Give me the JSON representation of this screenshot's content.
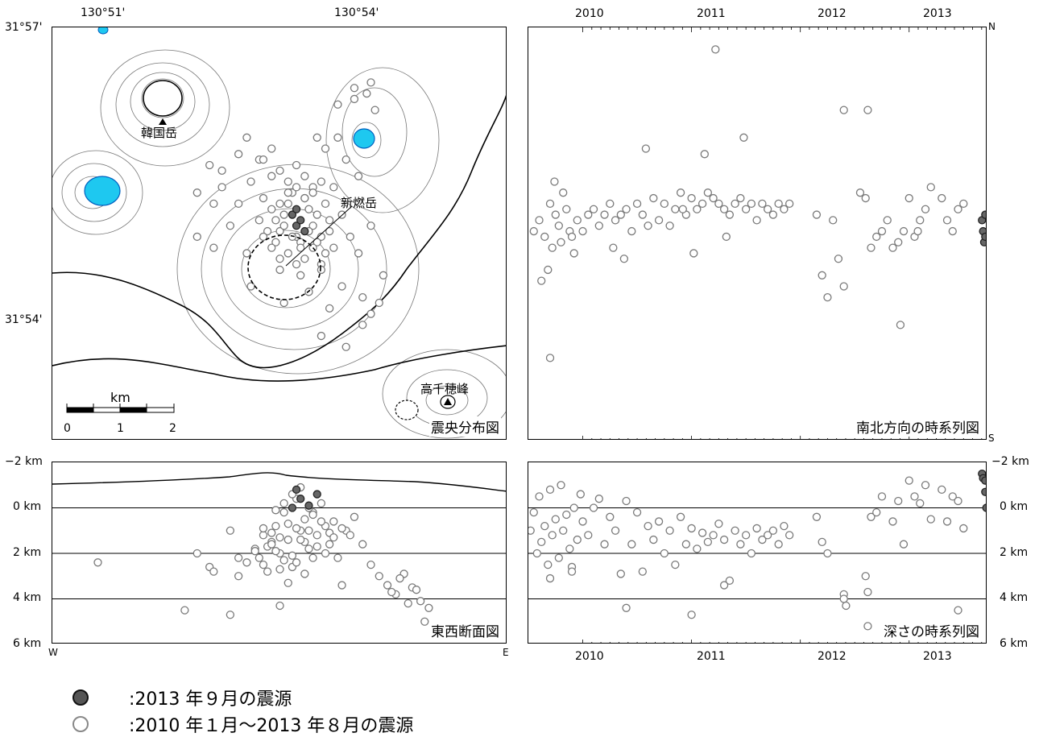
{
  "map": {
    "lon_labels": [
      "130°51'",
      "130°54'"
    ],
    "lat_labels": [
      "31°57'",
      "31°54'"
    ],
    "peaks": [
      "韓国岳",
      "新燃岳",
      "高千穂峰"
    ],
    "scale": {
      "unit": "km",
      "ticks": [
        "0",
        "1",
        "2"
      ]
    },
    "title": "震央分布図"
  },
  "ns_panel": {
    "years": [
      "2010",
      "2011",
      "2012",
      "2013"
    ],
    "north": "N",
    "south": "S",
    "title": "南北方向の時系列図"
  },
  "ew_panel": {
    "depth_labels": [
      "−2 km",
      "0 km",
      "2 km",
      "4 km",
      "6 km"
    ],
    "west": "W",
    "east": "E",
    "title": "東西断面図"
  },
  "dt_panel": {
    "depth_labels": [
      "−2 km",
      "0 km",
      "2 km",
      "4 km",
      "6 km"
    ],
    "years": [
      "2010",
      "2011",
      "2012",
      "2013"
    ],
    "title": "深さの時系列図"
  },
  "legend": [
    {
      "symbol": "filled-dark-circle",
      "text": ":2013 年９月の震源"
    },
    {
      "symbol": "open-circle",
      "text": ":2010 年１月～2013 年８月の震源"
    }
  ],
  "colors": {
    "recent": "#666666",
    "older": "#ffffff",
    "outline": "#7a7a7a",
    "lake": "#1ec8f0"
  },
  "chart_data": [
    {
      "type": "scatter",
      "name": "epicenter-map",
      "title": "震央分布図",
      "xlabel": "",
      "ylabel": "",
      "xlim": [
        130.825,
        130.935
      ],
      "ylim": [
        31.875,
        31.95
      ],
      "x_ticks": [
        "130°51'",
        "130°54'"
      ],
      "y_ticks": [
        "31°57'",
        "31°54'"
      ],
      "series": [
        {
          "name": "2013 年９月の震源",
          "x": [
            130.883,
            130.884,
            130.885,
            130.886,
            130.884
          ],
          "y": [
            31.916,
            31.914,
            31.915,
            31.913,
            31.917
          ]
        },
        {
          "name": "2010 年１月～2013 年８月の震源",
          "x": [
            130.86,
            130.863,
            130.866,
            130.87,
            130.873,
            130.876,
            130.878,
            130.879,
            130.88,
            130.881,
            130.882,
            130.883,
            130.884,
            130.885,
            130.886,
            130.887,
            130.888,
            130.889,
            130.89,
            130.891,
            130.892,
            130.893,
            130.895,
            130.897,
            130.899,
            130.902,
            130.905,
            130.875,
            130.877,
            130.879,
            130.881,
            130.883,
            130.885,
            130.887,
            130.889,
            130.891,
            130.88,
            130.882,
            130.884,
            130.886,
            130.888,
            130.878,
            130.88,
            130.882,
            130.884,
            130.886,
            130.888,
            130.89,
            130.876,
            130.878,
            130.88,
            130.882,
            130.884,
            130.886,
            130.888,
            130.89,
            130.892,
            130.88,
            130.885,
            130.89,
            130.895,
            130.9,
            130.904,
            130.903,
            130.901,
            130.898,
            130.87,
            130.866,
            130.864,
            130.868,
            130.872,
            130.893,
            130.896,
            130.899,
            130.894,
            130.891,
            130.878,
            130.875,
            130.873,
            130.881,
            130.887,
            130.892,
            130.9,
            130.902,
            130.896,
            130.89,
            130.86,
            130.864,
            130.902,
            130.898,
            130.894,
            130.889,
            130.876,
            130.872
          ],
          "y": [
            31.92,
            31.925,
            31.921,
            31.918,
            31.922,
            31.919,
            31.917,
            31.915,
            31.913,
            31.916,
            31.918,
            31.92,
            31.912,
            31.911,
            31.919,
            31.917,
            31.914,
            31.916,
            31.912,
            31.918,
            31.913,
            31.91,
            31.916,
            31.912,
            31.909,
            31.914,
            31.905,
            31.915,
            31.913,
            31.911,
            31.914,
            31.912,
            31.91,
            31.913,
            31.911,
            31.909,
            31.918,
            31.92,
            31.921,
            31.919,
            31.921,
            31.923,
            31.924,
            31.922,
            31.925,
            31.923,
            31.92,
            31.922,
            31.912,
            31.91,
            31.908,
            31.909,
            31.907,
            31.908,
            31.91,
            31.907,
            31.915,
            31.906,
            31.905,
            31.906,
            31.903,
            31.901,
            31.9,
            31.935,
            31.938,
            31.937,
            31.927,
            31.924,
            31.918,
            31.914,
            31.909,
            31.921,
            31.926,
            31.923,
            31.93,
            31.928,
            31.928,
            31.926,
            31.903,
            31.9,
            31.902,
            31.899,
            31.896,
            31.898,
            31.892,
            31.894,
            31.912,
            31.91,
            31.94,
            31.939,
            31.936,
            31.93,
            31.926,
            31.93
          ]
        }
      ]
    },
    {
      "type": "scatter",
      "name": "north-south-time-series",
      "title": "南北方向の時系列図",
      "xlabel": "",
      "ylabel": "",
      "x_ticks": [
        "2010",
        "2011",
        "2012",
        "2013"
      ],
      "xlim": [
        2009.5,
        2013.72
      ],
      "ylim": [
        "S",
        "N"
      ],
      "series": [
        {
          "name": "2013 年９月の震源",
          "x": [
            2013.67,
            2013.68,
            2013.7,
            2013.69,
            2013.7
          ],
          "y": [
            31.915,
            31.913,
            31.916,
            31.911,
            31.912
          ]
        },
        {
          "name": "2010 年１月～2013 年８月の震源",
          "x": [
            2009.55,
            2009.6,
            2009.65,
            2009.7,
            2009.72,
            2009.75,
            2009.78,
            2009.8,
            2009.85,
            2009.88,
            2009.9,
            2009.95,
            2010.0,
            2010.05,
            2010.1,
            2010.15,
            2010.2,
            2010.25,
            2010.3,
            2010.35,
            2010.4,
            2010.45,
            2010.5,
            2010.55,
            2010.6,
            2010.65,
            2010.7,
            2010.75,
            2010.8,
            2010.85,
            2010.9,
            2010.95,
            2011.0,
            2011.05,
            2011.1,
            2011.15,
            2011.2,
            2011.25,
            2011.3,
            2011.35,
            2011.4,
            2011.45,
            2011.5,
            2011.55,
            2011.6,
            2011.65,
            2011.7,
            2011.75,
            2011.8,
            2011.85,
            2011.9,
            2012.15,
            2012.2,
            2012.25,
            2012.3,
            2012.35,
            2012.4,
            2012.55,
            2012.6,
            2012.65,
            2012.7,
            2012.75,
            2012.8,
            2012.85,
            2012.9,
            2012.95,
            2013.0,
            2013.05,
            2013.1,
            2013.15,
            2013.2,
            2013.3,
            2013.35,
            2013.4,
            2013.45,
            2013.5,
            2009.62,
            2009.68,
            2009.74,
            2009.82,
            2009.92,
            2010.28,
            2010.38,
            2010.58,
            2010.92,
            2011.02,
            2011.12,
            2011.22,
            2011.32,
            2011.48,
            2012.4,
            2012.62,
            2012.92,
            2013.08,
            2009.7
          ],
          "y": [
            31.913,
            31.915,
            31.912,
            31.918,
            31.91,
            31.916,
            31.914,
            31.911,
            31.917,
            31.913,
            31.912,
            31.915,
            31.913,
            31.916,
            31.917,
            31.914,
            31.916,
            31.918,
            31.915,
            31.916,
            31.917,
            31.913,
            31.918,
            31.916,
            31.914,
            31.919,
            31.915,
            31.918,
            31.914,
            31.917,
            31.92,
            31.916,
            31.919,
            31.917,
            31.918,
            31.92,
            31.919,
            31.918,
            31.917,
            31.916,
            31.918,
            31.919,
            31.917,
            31.918,
            31.915,
            31.918,
            31.917,
            31.916,
            31.918,
            31.917,
            31.918,
            31.916,
            31.905,
            31.901,
            31.915,
            31.908,
            31.903,
            31.92,
            31.919,
            31.91,
            31.912,
            31.913,
            31.915,
            31.91,
            31.911,
            31.913,
            31.919,
            31.912,
            31.915,
            31.917,
            31.921,
            31.919,
            31.915,
            31.913,
            31.917,
            31.918,
            31.904,
            31.906,
            31.922,
            31.92,
            31.909,
            31.91,
            31.908,
            31.928,
            31.917,
            31.909,
            31.927,
            31.946,
            31.912,
            31.93,
            31.935,
            31.935,
            31.896,
            31.913,
            31.89
          ]
        }
      ]
    },
    {
      "type": "scatter",
      "name": "east-west-cross-section",
      "title": "東西断面図",
      "xlabel": "",
      "ylabel": "",
      "xlim": [
        "W",
        "E"
      ],
      "ylim": [
        6,
        -2
      ],
      "y_unit": "km",
      "y_ticks": [
        "−2 km",
        "0 km",
        "2 km",
        "4 km",
        "6 km"
      ],
      "series": [
        {
          "name": "2013 年９月の震源",
          "x": [
            130.884,
            130.885,
            130.887,
            130.883,
            130.889
          ],
          "y": [
            -0.8,
            -0.4,
            -0.1,
            0.0,
            -0.6
          ]
        },
        {
          "name": "2010 年１月～2013 年８月の震源",
          "x": [
            130.836,
            130.857,
            130.863,
            130.868,
            130.87,
            130.872,
            130.874,
            130.875,
            130.876,
            130.877,
            130.878,
            130.879,
            130.88,
            130.881,
            130.882,
            130.883,
            130.884,
            130.885,
            130.886,
            130.887,
            130.888,
            130.889,
            130.89,
            130.891,
            130.892,
            130.893,
            130.894,
            130.896,
            130.898,
            130.9,
            130.902,
            130.904,
            130.906,
            130.908,
            130.91,
            130.912,
            130.914,
            130.916,
            130.86,
            130.864,
            130.87,
            130.876,
            130.878,
            130.88,
            130.882,
            130.884,
            130.886,
            130.888,
            130.89,
            130.892,
            130.879,
            130.881,
            130.883,
            130.885,
            130.887,
            130.877,
            130.879,
            130.881,
            130.883,
            130.885,
            130.887,
            130.889,
            130.891,
            130.893,
            130.895,
            130.897,
            130.874,
            130.876,
            130.878,
            130.88,
            130.882,
            130.884,
            130.886,
            130.888,
            130.909,
            130.907,
            130.911,
            130.913,
            130.868,
            130.88,
            130.895,
            130.915
          ],
          "y": [
            2.4,
            4.5,
            2.6,
            1.0,
            3.0,
            2.4,
            1.8,
            2.2,
            1.2,
            2.8,
            1.5,
            0.8,
            2.0,
            0.2,
            1.4,
            2.6,
            -0.4,
            1.0,
            0.5,
            1.8,
            0.2,
            1.2,
            -0.2,
            0.8,
            1.6,
            0.6,
            2.2,
            1.0,
            0.4,
            1.6,
            2.5,
            3.0,
            3.4,
            3.8,
            2.9,
            3.5,
            4.1,
            4.4,
            2.0,
            2.8,
            2.2,
            0.9,
            1.1,
            1.3,
            0.7,
            0.9,
            1.5,
            0.3,
            0.6,
            1.1,
            0.1,
            -0.2,
            -0.6,
            -0.9,
            0.0,
            1.7,
            1.9,
            2.3,
            2.1,
            1.4,
            1.0,
            1.7,
            2.0,
            1.3,
            0.9,
            1.2,
            1.9,
            2.5,
            1.6,
            2.7,
            3.3,
            2.4,
            2.9,
            2.2,
            3.1,
            3.7,
            4.2,
            3.6,
            4.7,
            4.3,
            3.4,
            5.0
          ]
        }
      ]
    },
    {
      "type": "scatter",
      "name": "depth-time-series",
      "title": "深さの時系列図",
      "xlabel": "",
      "ylabel": "",
      "xlim": [
        2009.5,
        2013.72
      ],
      "x_ticks": [
        "2010",
        "2011",
        "2012",
        "2013"
      ],
      "ylim": [
        6,
        -2
      ],
      "y_unit": "km",
      "y_ticks": [
        "−2 km",
        "0 km",
        "2 km",
        "4 km",
        "6 km"
      ],
      "series": [
        {
          "name": "2013 年９月の震源",
          "x": [
            2013.67,
            2013.68,
            2013.7,
            2013.71,
            2013.7
          ],
          "y": [
            -1.5,
            -1.3,
            -0.7,
            0.0,
            -1.2
          ]
        },
        {
          "name": "2010 年１月～2013 年８月の震源",
          "x": [
            2009.52,
            2009.55,
            2009.58,
            2009.6,
            2009.62,
            2009.65,
            2009.68,
            2009.7,
            2009.72,
            2009.75,
            2009.78,
            2009.8,
            2009.82,
            2009.85,
            2009.88,
            2009.9,
            2009.92,
            2009.95,
            2009.98,
            2010.0,
            2010.05,
            2010.1,
            2010.15,
            2010.2,
            2010.25,
            2010.3,
            2010.35,
            2010.4,
            2010.45,
            2010.5,
            2010.55,
            2010.6,
            2010.65,
            2010.7,
            2010.75,
            2010.8,
            2010.85,
            2010.9,
            2010.95,
            2011.0,
            2011.05,
            2011.1,
            2011.15,
            2011.2,
            2011.25,
            2011.3,
            2011.35,
            2011.4,
            2011.45,
            2011.5,
            2011.55,
            2011.6,
            2011.65,
            2011.7,
            2011.75,
            2011.8,
            2011.85,
            2011.9,
            2012.15,
            2012.2,
            2012.25,
            2012.4,
            2012.42,
            2012.6,
            2012.62,
            2012.65,
            2012.7,
            2012.75,
            2012.85,
            2012.9,
            2012.95,
            2013.0,
            2013.05,
            2013.1,
            2013.15,
            2013.2,
            2013.3,
            2013.35,
            2013.4,
            2013.45,
            2013.5,
            2009.7,
            2009.9,
            2010.4,
            2011.0,
            2011.3,
            2012.4,
            2012.62,
            2013.45
          ],
          "y": [
            1.0,
            0.2,
            2.0,
            -0.5,
            1.5,
            0.8,
            2.5,
            -0.8,
            1.2,
            0.5,
            2.2,
            -1.0,
            1.0,
            0.3,
            1.8,
            2.6,
            0.0,
            1.4,
            -0.6,
            0.6,
            1.2,
            0.0,
            -0.4,
            1.6,
            0.4,
            1.0,
            2.9,
            -0.3,
            1.6,
            0.2,
            2.8,
            0.8,
            1.4,
            0.6,
            2.0,
            1.0,
            2.5,
            0.4,
            1.6,
            0.9,
            1.8,
            1.1,
            1.5,
            1.2,
            0.7,
            1.4,
            3.2,
            1.0,
            1.6,
            1.2,
            2.0,
            0.9,
            1.4,
            1.2,
            1.0,
            1.6,
            0.8,
            1.2,
            0.4,
            1.5,
            2.0,
            3.8,
            4.3,
            3.0,
            3.7,
            0.4,
            0.2,
            -0.5,
            0.6,
            -0.3,
            1.6,
            -1.2,
            -0.5,
            -0.2,
            -1.0,
            0.5,
            -0.8,
            0.6,
            -0.5,
            -0.3,
            0.9,
            3.1,
            2.8,
            4.4,
            4.7,
            3.4,
            4.0,
            5.2,
            4.5
          ]
        }
      ]
    }
  ]
}
